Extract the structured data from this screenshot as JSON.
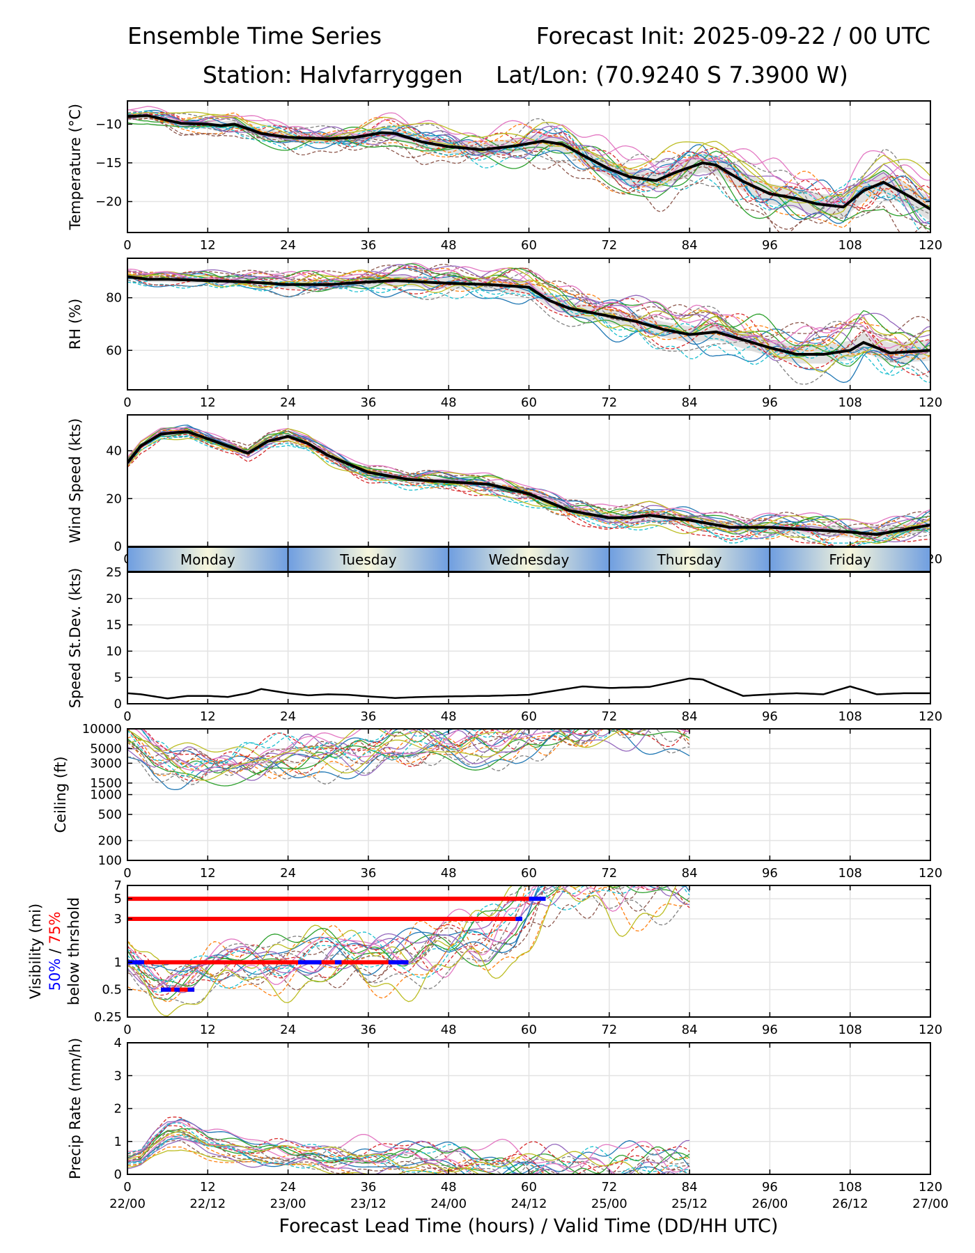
{
  "header": {
    "title_left": "Ensemble Time Series",
    "title_right": "Forecast Init: 2025-09-22 / 00 UTC",
    "station": "Station: Halvfarryggen",
    "latlon": "Lat/Lon: (70.9240 S 7.3900 W)"
  },
  "x_axis": {
    "label": "Forecast Lead Time (hours) / Valid Time (DD/HH UTC)",
    "ticks": [
      0,
      12,
      24,
      36,
      48,
      60,
      72,
      84,
      96,
      108,
      120
    ],
    "valid_labels": [
      "22/00",
      "22/12",
      "23/00",
      "23/12",
      "24/00",
      "24/12",
      "25/00",
      "25/12",
      "26/00",
      "26/12",
      "27/00"
    ],
    "range": [
      0,
      120
    ]
  },
  "day_strip": [
    "Monday",
    "Tuesday",
    "Wednesday",
    "Thursday",
    "Friday"
  ],
  "colors": {
    "mean": "#000000",
    "spread_fill": "#c8c8c8",
    "vis_50": "#0000ff",
    "vis_75": "#ff0000",
    "grid": "#e3e3e3",
    "day_edge": "#6f9ee0",
    "day_center": "#f6f6dc",
    "members": [
      "#1f77b4",
      "#ff7f0e",
      "#2ca02c",
      "#d62728",
      "#9467bd",
      "#8c564b",
      "#e377c2",
      "#7f7f7f",
      "#bcbd22",
      "#17becf"
    ]
  },
  "chart_data": [
    {
      "id": "temperature",
      "type": "line",
      "ylabel": "Temperature (°C)",
      "ylim": [
        -24,
        -7
      ],
      "yticks": [
        -10,
        -15,
        -20
      ],
      "ytick_labels": [
        "−10",
        "−15",
        "−20"
      ],
      "ensemble_members": 20,
      "mean_series": {
        "x": [
          0,
          3,
          5,
          8,
          12,
          14,
          16,
          20,
          24,
          27,
          30,
          34,
          38,
          40,
          44,
          48,
          53,
          58,
          62,
          65,
          68,
          72,
          75,
          79,
          82,
          86,
          88,
          92,
          96,
          100,
          103,
          107,
          110,
          113,
          117,
          120
        ],
        "y": [
          -9.0,
          -8.9,
          -9.3,
          -9.9,
          -10.0,
          -10.2,
          -10.0,
          -11.2,
          -11.7,
          -11.8,
          -11.9,
          -11.7,
          -11.1,
          -11.2,
          -12.3,
          -12.9,
          -13.3,
          -12.8,
          -12.2,
          -12.6,
          -14.0,
          -15.8,
          -16.8,
          -17.3,
          -16.2,
          -15.0,
          -15.3,
          -17.4,
          -19.0,
          -19.6,
          -20.3,
          -20.7,
          -18.6,
          -17.5,
          -19.4,
          -21.0
        ]
      }
    },
    {
      "id": "rh",
      "type": "line",
      "ylabel": "RH (%)",
      "ylim": [
        45,
        95
      ],
      "yticks": [
        60,
        80
      ],
      "ytick_labels": [
        "60",
        "80"
      ],
      "ensemble_members": 20,
      "mean_series": {
        "x": [
          0,
          3,
          6,
          12,
          18,
          24,
          30,
          36,
          40,
          48,
          54,
          60,
          63,
          66,
          72,
          76,
          80,
          84,
          88,
          92,
          96,
          100,
          104,
          108,
          110,
          114,
          120
        ],
        "y": [
          88,
          87,
          87,
          86.5,
          86,
          85,
          85,
          86,
          86.5,
          85.5,
          85,
          84,
          79,
          76,
          73,
          71,
          68,
          66,
          67,
          64,
          61,
          58.5,
          58.5,
          60,
          63,
          59,
          60
        ]
      }
    },
    {
      "id": "wind_speed",
      "type": "line",
      "ylabel": "Wind Speed (kts)",
      "ylim": [
        0,
        55
      ],
      "yticks": [
        0,
        20,
        40
      ],
      "ytick_labels": [
        "0",
        "20",
        "40"
      ],
      "ensemble_members": 20,
      "mean_series": {
        "x": [
          0,
          2,
          5,
          9,
          12,
          15,
          18,
          21,
          24,
          27,
          30,
          36,
          42,
          48,
          54,
          60,
          66,
          72,
          75,
          78,
          84,
          90,
          96,
          102,
          108,
          112,
          116,
          120
        ],
        "y": [
          35,
          42,
          47,
          48,
          45,
          42,
          39,
          44,
          46,
          43,
          38,
          31,
          28,
          27,
          26,
          22,
          15,
          12,
          12,
          13,
          11,
          8,
          8,
          7,
          6,
          5,
          7,
          9
        ]
      }
    },
    {
      "id": "speed_stdev",
      "type": "line",
      "ylabel": "Speed St.Dev. (kts)",
      "ylim": [
        0,
        25
      ],
      "yticks": [
        0,
        5,
        10,
        15,
        20,
        25
      ],
      "ytick_labels": [
        "0",
        "5",
        "10",
        "15",
        "20",
        "25"
      ],
      "mean_series": {
        "x": [
          0,
          2,
          4,
          6,
          9,
          12,
          15,
          18,
          20,
          24,
          27,
          30,
          33,
          36,
          40,
          44,
          48,
          54,
          60,
          64,
          68,
          72,
          78,
          84,
          86,
          88,
          92,
          96,
          100,
          104,
          108,
          112,
          116,
          120
        ],
        "y": [
          2.0,
          1.8,
          1.4,
          1.0,
          1.5,
          1.5,
          1.3,
          2.0,
          2.8,
          2.0,
          1.6,
          1.8,
          1.7,
          1.4,
          1.1,
          1.3,
          1.4,
          1.5,
          1.7,
          2.5,
          3.3,
          3.0,
          3.2,
          4.8,
          4.6,
          3.5,
          1.5,
          1.8,
          2.0,
          1.8,
          3.3,
          1.8,
          2.0,
          2.0
        ]
      }
    },
    {
      "id": "ceiling",
      "type": "line",
      "ylabel": "Ceiling (ft)",
      "scale": "log",
      "ylim": [
        100,
        10000
      ],
      "yticks": [
        100,
        200,
        500,
        1000,
        1500,
        3000,
        5000,
        10000
      ],
      "ytick_labels": [
        "100",
        "200",
        "500",
        "1000",
        "1500",
        "3000",
        "5000",
        "10000"
      ],
      "ensemble_members": 20,
      "member_guide": {
        "x": [
          0,
          2,
          4,
          6,
          8,
          12,
          16,
          20,
          24,
          30,
          36,
          42,
          48,
          54,
          58,
          60,
          66,
          72,
          78,
          84
        ],
        "y": [
          7000,
          5500,
          3500,
          2700,
          2500,
          2700,
          3100,
          3400,
          3600,
          4000,
          4300,
          4800,
          5500,
          6000,
          7200,
          9000,
          10000,
          10000,
          10000,
          10000
        ]
      }
    },
    {
      "id": "visibility",
      "type": "line",
      "ylabel": "Visibility (mi)",
      "sublabel_prefix": "50%",
      "sublabel_sep": " / ",
      "sublabel_suffix": "75%",
      "sublabel_2": "below thrshold",
      "scale": "log",
      "ylim": [
        0.25,
        7
      ],
      "yticks": [
        0.25,
        0.5,
        1,
        3,
        5,
        7
      ],
      "ytick_labels": [
        "0.25",
        "0.5",
        "1",
        "3",
        "5",
        "7"
      ],
      "ensemble_members": 20,
      "member_guide": {
        "x": [
          0,
          2,
          4,
          6,
          8,
          12,
          18,
          24,
          30,
          36,
          42,
          48,
          54,
          58,
          60,
          62,
          66,
          72,
          78,
          84
        ],
        "y": [
          1.0,
          0.75,
          0.55,
          0.5,
          0.55,
          0.7,
          0.85,
          0.9,
          1.0,
          0.95,
          1.05,
          1.2,
          1.5,
          2.2,
          3.5,
          5.5,
          6.5,
          7,
          7,
          7
        ]
      },
      "threshold_bars": [
        {
          "threshold": 5,
          "x75": [
            0,
            60
          ],
          "x50": [
            60,
            62.5
          ]
        },
        {
          "threshold": 3,
          "x75": [
            0,
            58
          ],
          "x50": [
            58,
            59
          ]
        },
        {
          "threshold": 1,
          "x75": [
            0,
            42
          ],
          "x50_segments": [
            [
              0,
              2.5
            ],
            [
              25.5,
              29
            ],
            [
              31,
              32
            ],
            [
              39,
              42
            ]
          ]
        },
        {
          "threshold": 0.5,
          "x75": [
            5,
            10
          ],
          "x50_segments": [
            [
              5,
              6.5
            ],
            [
              7,
              7.8
            ],
            [
              9,
              10
            ]
          ]
        }
      ]
    },
    {
      "id": "precip_rate",
      "type": "line",
      "ylabel": "Precip Rate (mm/h)",
      "ylim": [
        0,
        4
      ],
      "yticks": [
        0,
        1,
        2,
        3,
        4
      ],
      "ytick_labels": [
        "0",
        "1",
        "2",
        "3",
        "4"
      ],
      "ensemble_members": 20,
      "member_guide": {
        "x": [
          0,
          2,
          4,
          6,
          8,
          10,
          12,
          16,
          20,
          24,
          30,
          36,
          42,
          48,
          54,
          60,
          66,
          72,
          78,
          84
        ],
        "y": [
          0.4,
          0.5,
          0.9,
          1.2,
          1.25,
          1.1,
          0.9,
          0.7,
          0.55,
          0.5,
          0.45,
          0.45,
          0.35,
          0.28,
          0.18,
          0.1,
          0.06,
          0.04,
          0.02,
          0.0
        ]
      }
    }
  ]
}
